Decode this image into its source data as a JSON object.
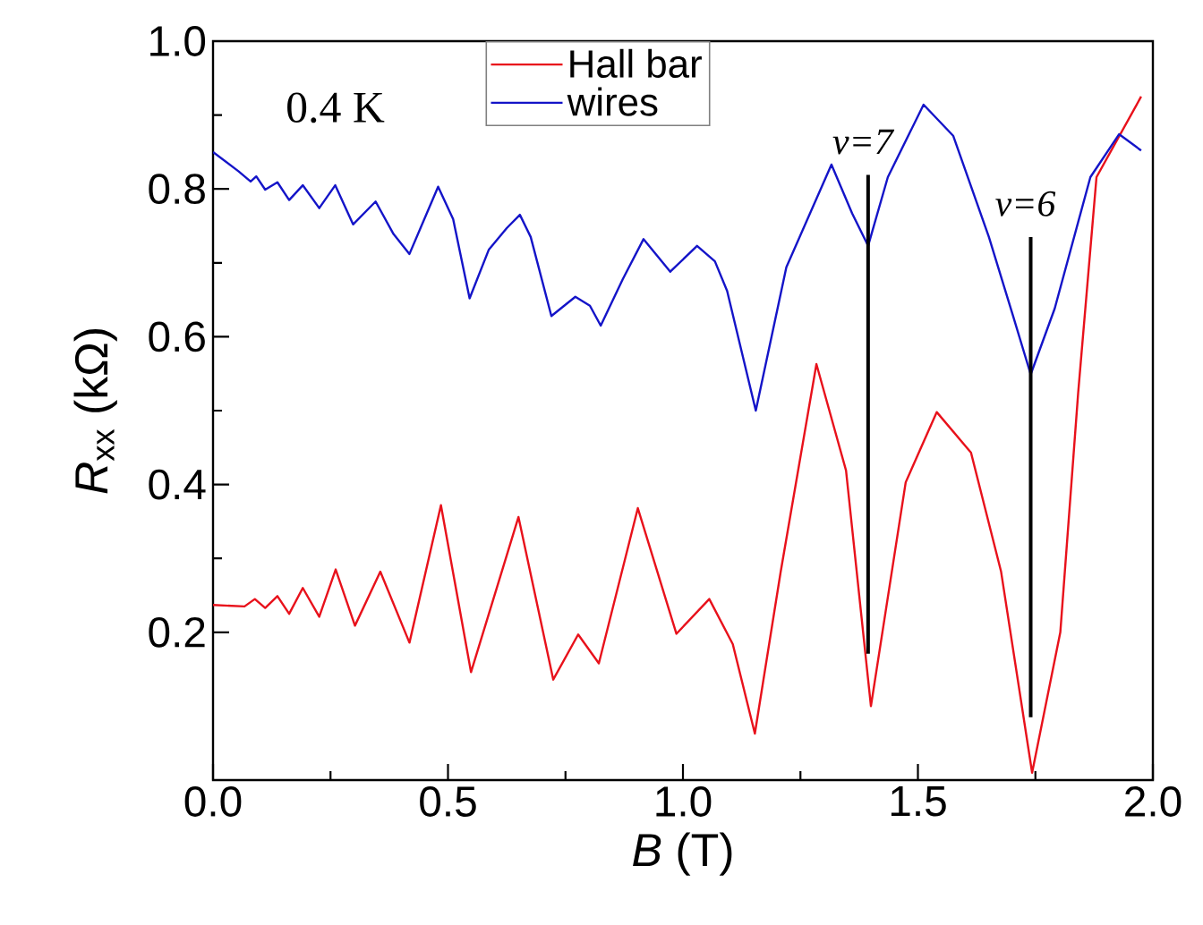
{
  "chart_data": {
    "type": "line",
    "xlabel": "*B* (T)",
    "ylabel": "*R*$_{xx}$ (kΩ)",
    "xlim": [
      0,
      2.0
    ],
    "ylim": [
      0,
      1.0
    ],
    "xticks": [
      {
        "value": 0,
        "label": "0.0"
      },
      0.5,
      {
        "value": 1,
        "label": "1.0"
      },
      1.5,
      {
        "value": 2,
        "label": "2.0"
      }
    ],
    "yticks": [
      0.2,
      0.4,
      0.6,
      0.8,
      {
        "value": 1,
        "label": "1.0"
      }
    ],
    "legend": "top",
    "series": [
      {
        "name": "Hall bar",
        "color": "#e8111b",
        "x": [
          0,
          0.067,
          0.089,
          0.111,
          0.137,
          0.162,
          0.191,
          0.226,
          0.261,
          0.302,
          0.356,
          0.418,
          0.485,
          0.549,
          0.65,
          0.724,
          0.777,
          0.821,
          0.904,
          0.986,
          1.056,
          1.106,
          1.153,
          1.208,
          1.284,
          1.347,
          1.4,
          1.474,
          1.54,
          1.613,
          1.677,
          1.743,
          1.803,
          1.841,
          1.88,
          1.975
        ],
        "values": [
          0.237,
          0.235,
          0.245,
          0.233,
          0.249,
          0.225,
          0.26,
          0.221,
          0.285,
          0.209,
          0.282,
          0.186,
          0.372,
          0.146,
          0.356,
          0.136,
          0.197,
          0.158,
          0.368,
          0.198,
          0.245,
          0.184,
          0.063,
          0.282,
          0.563,
          0.419,
          0.1,
          0.403,
          0.498,
          0.443,
          0.282,
          0.01,
          0.2,
          0.524,
          0.816,
          0.925
        ]
      },
      {
        "name": "wires",
        "color": "#1414c8",
        "x": [
          0,
          0.054,
          0.08,
          0.092,
          0.111,
          0.137,
          0.162,
          0.191,
          0.226,
          0.26,
          0.298,
          0.346,
          0.384,
          0.418,
          0.479,
          0.511,
          0.546,
          0.587,
          0.625,
          0.653,
          0.676,
          0.72,
          0.771,
          0.802,
          0.825,
          0.872,
          0.916,
          0.973,
          1.03,
          1.068,
          1.094,
          1.155,
          1.22,
          1.316,
          1.36,
          1.394,
          1.436,
          1.512,
          1.575,
          1.651,
          1.702,
          1.74,
          1.791,
          1.867,
          1.928,
          1.975
        ],
        "values": [
          0.85,
          0.824,
          0.81,
          0.817,
          0.799,
          0.809,
          0.785,
          0.805,
          0.774,
          0.805,
          0.752,
          0.783,
          0.739,
          0.712,
          0.803,
          0.759,
          0.652,
          0.718,
          0.747,
          0.765,
          0.735,
          0.628,
          0.654,
          0.642,
          0.615,
          0.678,
          0.732,
          0.688,
          0.723,
          0.702,
          0.662,
          0.5,
          0.694,
          0.833,
          0.767,
          0.723,
          0.816,
          0.914,
          0.872,
          0.735,
          0.629,
          0.549,
          0.638,
          0.816,
          0.874,
          0.852
        ]
      },
      {
        "color": "#000000",
        "x": [
          1.394,
          1.394
        ],
        "values": [
          0.819,
          0.171
        ]
      },
      {
        "color": "#000000",
        "x": [
          1.74,
          1.74
        ],
        "values": [
          0.735,
          0.085
        ]
      }
    ],
    "annotations": [
      "0.4 K",
      {
        "text": "ν=7",
        "x": 1.394,
        "y": 0.819
      },
      {
        "text": "ν=6",
        "x": 1.74,
        "y": 0.735
      }
    ]
  }
}
